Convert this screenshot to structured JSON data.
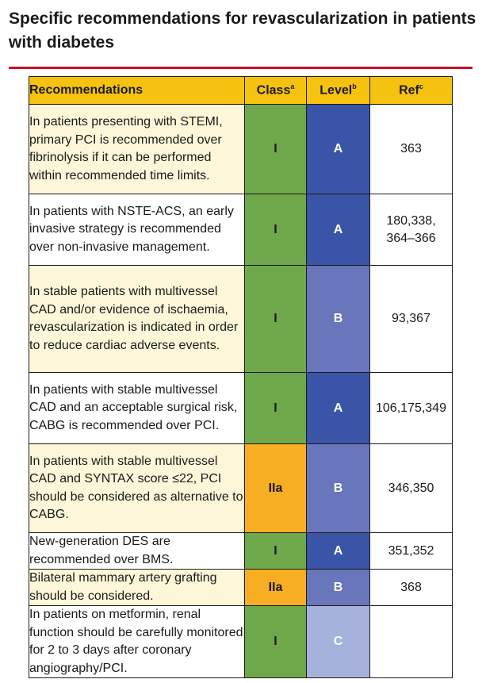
{
  "title": "Specific recommendations for revascularization in patients with diabetes",
  "header": {
    "recommendations": "Recommendations",
    "class": "Class",
    "class_sup": "a",
    "level": "Level",
    "level_sup": "b",
    "ref": "Ref",
    "ref_sup": "c"
  },
  "colors": {
    "class_I": "#6fa84a",
    "class_IIa": "#f7ae22",
    "level_A": "#3a55a8",
    "level_B": "#6976bb",
    "level_C": "#a7b2dc",
    "header": "#f5c20f",
    "rule": "#c8102e"
  },
  "rows": [
    {
      "text": "In patients presenting with STEMI, primary PCI is recommended over fibrinolysis if it can be performed within recommended time limits.",
      "class": "I",
      "level": "A",
      "ref": "363"
    },
    {
      "text": "In patients with NSTE-ACS, an early invasive strategy is recommended over non-invasive management.",
      "class": "I",
      "level": "A",
      "ref": "180,338, 364–366"
    },
    {
      "text": "In stable patients with multivessel CAD and/or evidence of ischaemia, revascularization is indicated in order to reduce cardiac adverse events.",
      "class": "I",
      "level": "B",
      "ref": "93,367"
    },
    {
      "text": "In patients with stable multivessel CAD and an acceptable surgical risk, CABG is recommended over PCI.",
      "class": "I",
      "level": "A",
      "ref": "106,175,349"
    },
    {
      "text": "In patients with stable multivessel CAD and SYNTAX score ≤22, PCI should be considered as alternative to CABG.",
      "class": "IIa",
      "level": "B",
      "ref": "346,350"
    },
    {
      "text": "New-generation DES are recommended over BMS.",
      "class": "I",
      "level": "A",
      "ref": "351,352"
    },
    {
      "text": "Bilateral mammary artery grafting should be considered.",
      "class": "IIa",
      "level": "B",
      "ref": "368"
    },
    {
      "text": "In patients on metformin, renal function should be carefully monitored for 2 to 3 days after coronary angiography/PCI.",
      "class": "I",
      "level": "C",
      "ref": ""
    }
  ]
}
